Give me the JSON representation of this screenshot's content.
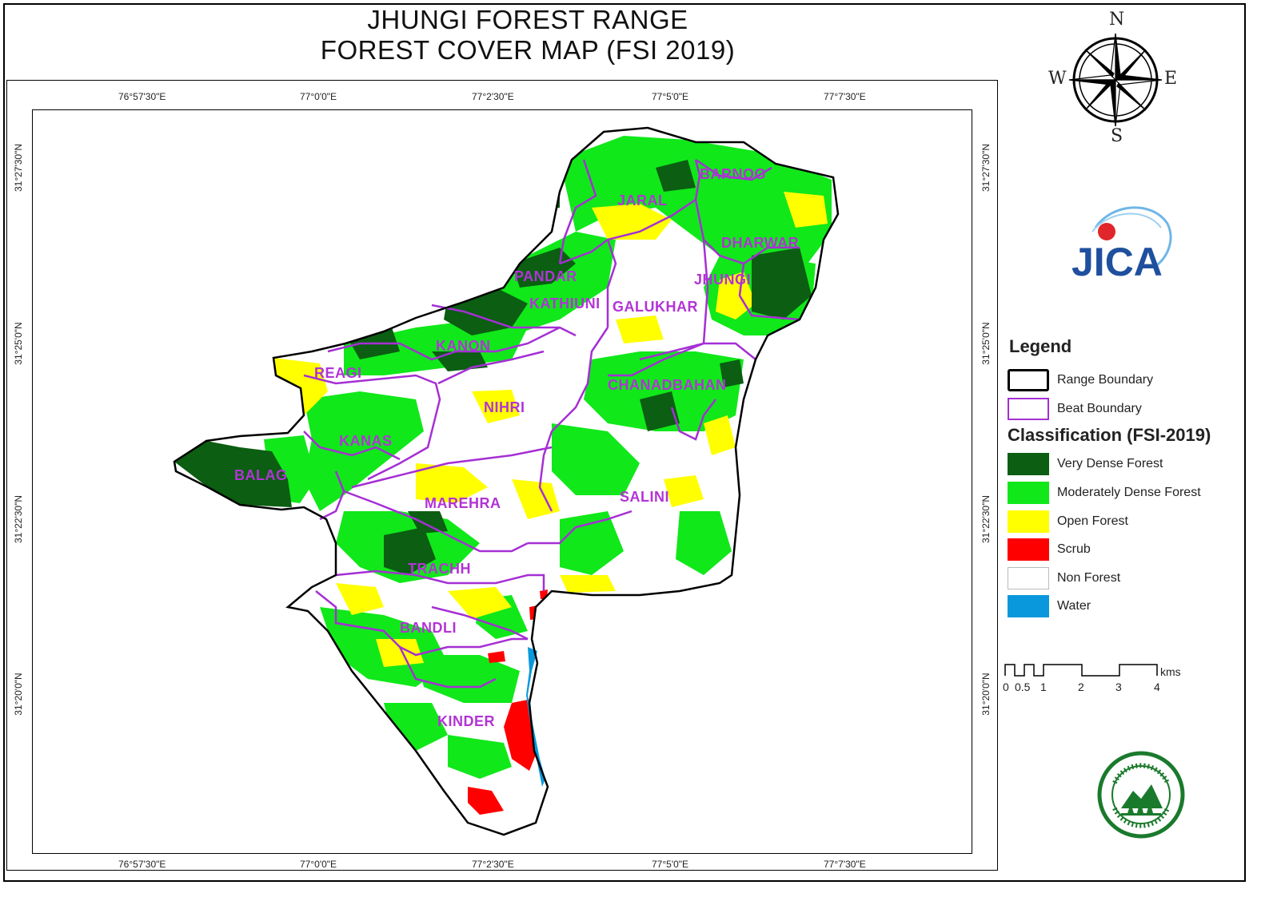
{
  "title": {
    "line1": "JHUNGI FOREST RANGE",
    "line2": "FOREST COVER MAP (FSI 2019)"
  },
  "compass": {
    "n": "N",
    "s": "S",
    "e": "E",
    "w": "W"
  },
  "coords": {
    "lon": [
      "76°57'30\"E",
      "77°0'0\"E",
      "77°2'30\"E",
      "77°5'0\"E",
      "77°7'30\"E"
    ],
    "lat": [
      "31°27'30\"N",
      "31°25'0\"N",
      "31°22'30\"N",
      "31°20'0\"N"
    ]
  },
  "beats": {
    "barnog": "BARNOG",
    "jaral": "JARAL",
    "dharwar": "DHARWAR",
    "pandar": "PANDAR",
    "jhungi": "JHUNGI",
    "kathiuni": "KATHIUNI",
    "galukhar": "GALUKHAR",
    "kanon": "KANON",
    "reagi": "REAGI",
    "chanadbahan": "CHANADBAHAN",
    "nihri": "NIHRI",
    "kanas": "KANAS",
    "balag": "BALAG",
    "salini": "SALINI",
    "marehra": "MAREHRA",
    "trachh": "TRACHH",
    "bandli": "BANDLI",
    "kinder": "KINDER"
  },
  "legend": {
    "title": "Legend",
    "range_boundary": "Range Boundary",
    "beat_boundary": "Beat Boundary",
    "classification_title": "Classification (FSI-2019)",
    "classes": [
      {
        "label": "Very Dense Forest",
        "color": "#0b5e12"
      },
      {
        "label": "Moderately Dense Forest",
        "color": "#10e81a"
      },
      {
        "label": "Open Forest",
        "color": "#ffff00"
      },
      {
        "label": "Scrub",
        "color": "#ff0000"
      },
      {
        "label": "Non Forest",
        "color": "#ffffff"
      },
      {
        "label": "Water",
        "color": "#0a98dc"
      }
    ]
  },
  "scale": {
    "unit": "kms",
    "ticks": [
      "0",
      "0.5",
      "1",
      "2",
      "3",
      "4"
    ]
  },
  "colors": {
    "beat_boundary": "#a52fd4",
    "range_boundary": "#000000",
    "beat_label": "#b233d6",
    "very_dense": "#0b5e12",
    "mod_dense": "#10e81a",
    "open": "#ffff00",
    "scrub": "#ff0000",
    "water": "#0a98dc"
  },
  "logos": {
    "jica": "JICA",
    "forest_dept": "forest department emblem"
  }
}
